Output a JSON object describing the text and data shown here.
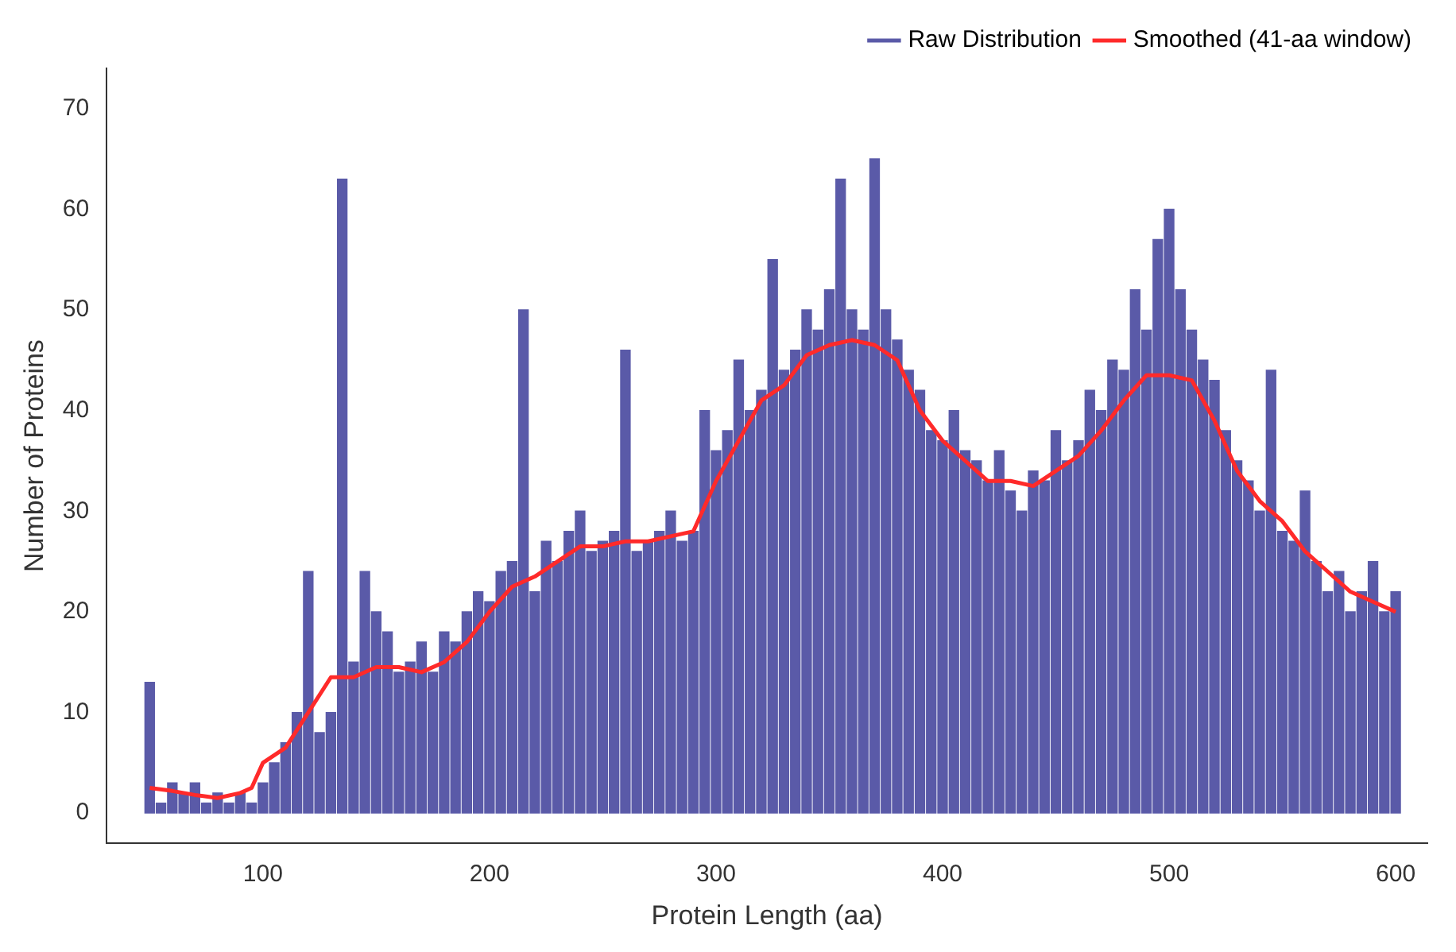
{
  "chart_data": {
    "type": "bar",
    "xlabel": "Protein Length (aa)",
    "ylabel": "Number of Proteins",
    "xlim": [
      31,
      614
    ],
    "ylim": [
      -3,
      74
    ],
    "xticks": [
      100,
      200,
      300,
      400,
      500,
      600
    ],
    "yticks": [
      0,
      10,
      20,
      30,
      40,
      50,
      60,
      70
    ],
    "legend": "top right",
    "series": [
      {
        "name": "Raw Distribution",
        "color": "#5a5aa8",
        "x": [
          50,
          55,
          60,
          65,
          70,
          75,
          80,
          85,
          90,
          95,
          100,
          105,
          110,
          115,
          120,
          125,
          130,
          135,
          140,
          145,
          150,
          155,
          160,
          165,
          170,
          175,
          180,
          185,
          190,
          195,
          200,
          205,
          210,
          215,
          220,
          225,
          230,
          235,
          240,
          245,
          250,
          255,
          260,
          265,
          270,
          275,
          280,
          285,
          290,
          295,
          300,
          305,
          310,
          315,
          320,
          325,
          330,
          335,
          340,
          345,
          350,
          355,
          360,
          365,
          370,
          375,
          380,
          385,
          390,
          395,
          400,
          405,
          410,
          415,
          420,
          425,
          430,
          435,
          440,
          445,
          450,
          455,
          460,
          465,
          470,
          475,
          480,
          485,
          490,
          495,
          500,
          505,
          510,
          515,
          520,
          525,
          530,
          535,
          540,
          545,
          550,
          555,
          560,
          565,
          570,
          575,
          580,
          585,
          590,
          595,
          600
        ],
        "values": [
          13,
          1,
          3,
          2,
          3,
          1,
          2,
          1,
          2,
          1,
          3,
          5,
          7,
          10,
          24,
          8,
          10,
          63,
          15,
          24,
          20,
          18,
          14,
          15,
          17,
          14,
          18,
          17,
          20,
          22,
          21,
          24,
          25,
          50,
          22,
          27,
          25,
          28,
          30,
          26,
          27,
          28,
          46,
          26,
          27,
          28,
          30,
          27,
          28,
          40,
          36,
          38,
          45,
          40,
          42,
          55,
          44,
          46,
          50,
          48,
          52,
          63,
          50,
          48,
          65,
          50,
          47,
          44,
          42,
          38,
          37,
          40,
          36,
          35,
          33,
          36,
          32,
          30,
          34,
          33,
          38,
          35,
          37,
          42,
          40,
          45,
          44,
          52,
          48,
          57,
          60,
          52,
          48,
          45,
          43,
          38,
          35,
          33,
          30,
          44,
          28,
          27,
          32,
          25,
          22,
          24,
          20,
          22,
          25,
          20,
          22
        ]
      },
      {
        "name": "Smoothed (41-aa window)",
        "type": "line",
        "color": "#ff2a2a",
        "x": [
          50,
          60,
          70,
          80,
          90,
          95,
          100,
          110,
          120,
          130,
          140,
          150,
          160,
          170,
          180,
          190,
          200,
          210,
          220,
          230,
          240,
          250,
          260,
          270,
          280,
          290,
          300,
          310,
          320,
          330,
          340,
          350,
          360,
          370,
          380,
          390,
          400,
          410,
          420,
          430,
          440,
          450,
          460,
          470,
          480,
          490,
          500,
          510,
          520,
          530,
          540,
          550,
          560,
          570,
          580,
          590,
          600
        ],
        "values": [
          2.5,
          2.2,
          1.8,
          1.5,
          2,
          2.5,
          5,
          6.5,
          10,
          13.5,
          13.5,
          14.5,
          14.5,
          14,
          15,
          17,
          20,
          22.5,
          23.5,
          25,
          26.5,
          26.5,
          27,
          27,
          27.5,
          28,
          33,
          37,
          41,
          42.5,
          45.5,
          46.5,
          47,
          46.5,
          45,
          40,
          37,
          35,
          33,
          33,
          32.5,
          34,
          35.5,
          38,
          41,
          43.5,
          43.5,
          43,
          39,
          34,
          31,
          29,
          26,
          24,
          22,
          21,
          20
        ]
      }
    ]
  }
}
